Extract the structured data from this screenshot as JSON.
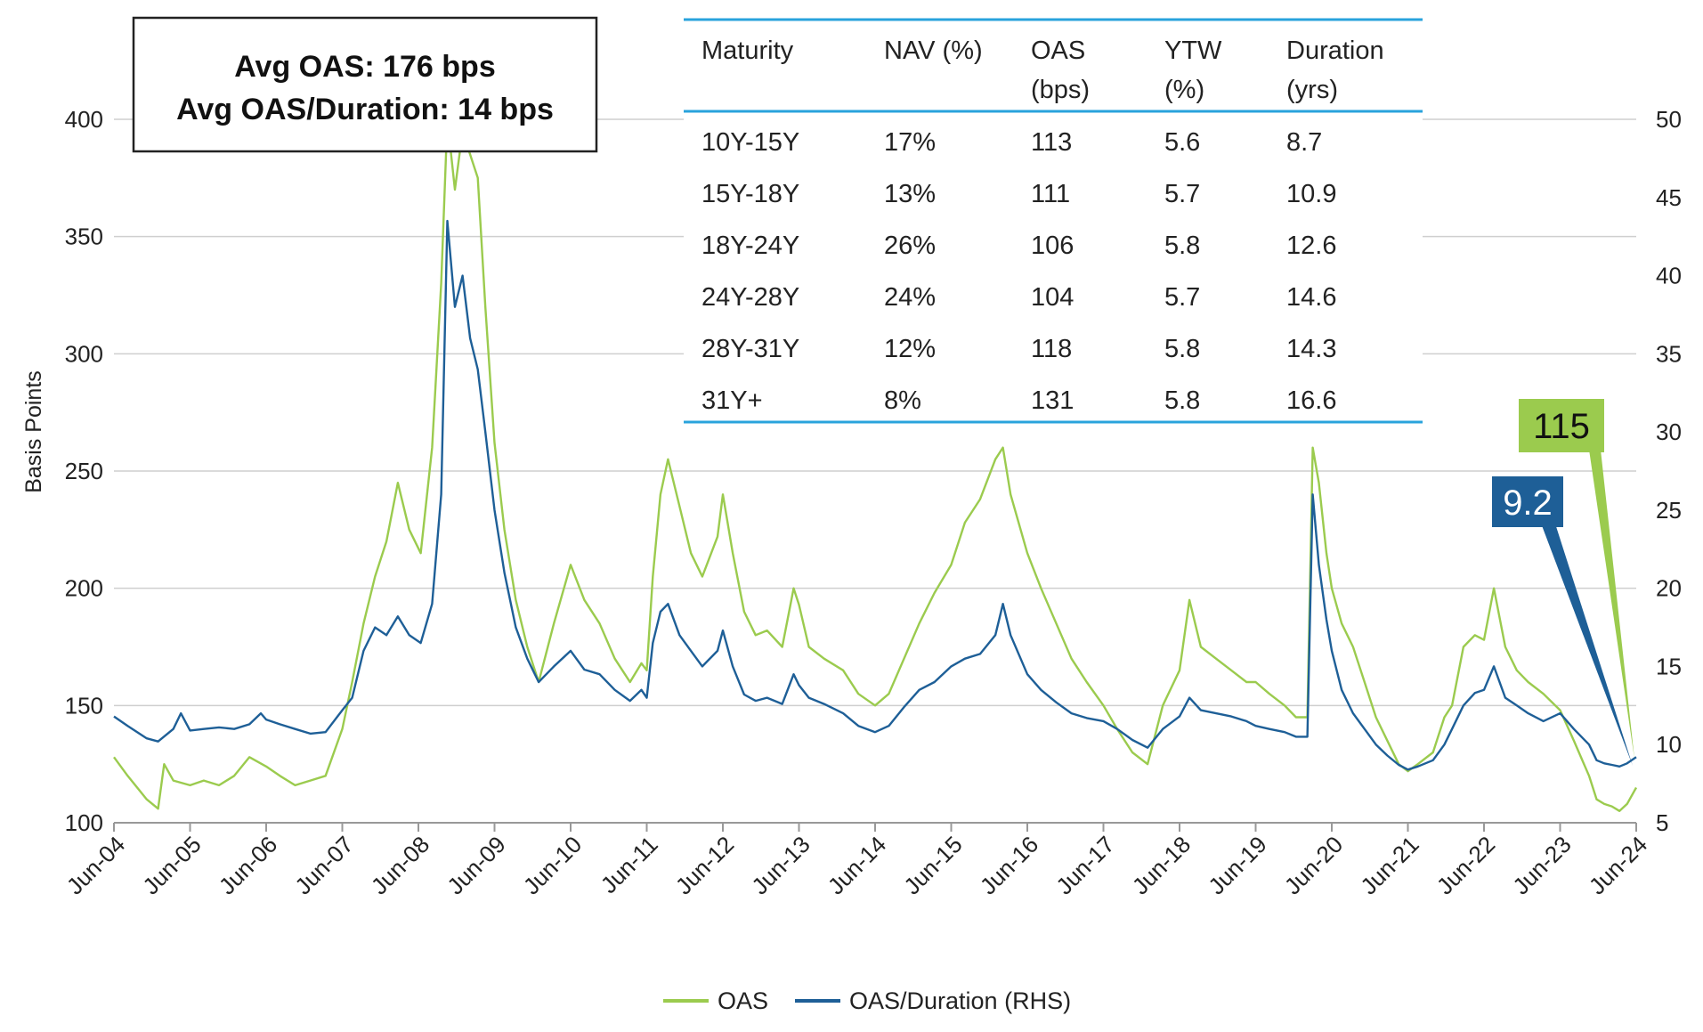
{
  "summary_box": {
    "line1": "Avg OAS: 176 bps",
    "line2": "Avg OAS/Duration: 14 bps"
  },
  "table": {
    "headers": [
      [
        "Maturity",
        ""
      ],
      [
        "NAV (%)",
        ""
      ],
      [
        "OAS",
        "(bps)"
      ],
      [
        "YTW",
        "(%)"
      ],
      [
        "Duration",
        "(yrs)"
      ]
    ],
    "rows": [
      [
        "10Y-15Y",
        "17%",
        "113",
        "5.6",
        "8.7"
      ],
      [
        "15Y-18Y",
        "13%",
        "111",
        "5.7",
        "10.9"
      ],
      [
        "18Y-24Y",
        "26%",
        "106",
        "5.8",
        "12.6"
      ],
      [
        "24Y-28Y",
        "24%",
        "104",
        "5.7",
        "14.6"
      ],
      [
        "28Y-31Y",
        "12%",
        "118",
        "5.8",
        "14.3"
      ],
      [
        "31Y+",
        "8%",
        "131",
        "5.8",
        "16.6"
      ]
    ],
    "rule_color": "#29a3dc"
  },
  "callouts": {
    "oas": {
      "label": "115",
      "bg": "#9bcb4e",
      "text_color": "#111111"
    },
    "oas_duration": {
      "label": "9.2",
      "bg": "#1e5f97",
      "text_color": "#ffffff"
    }
  },
  "chart_data": {
    "type": "line",
    "xlabel": "",
    "ylabel": "Basis Points",
    "y2label": "",
    "ylim": [
      100,
      400
    ],
    "y2lim": [
      5,
      50
    ],
    "yticks": [
      100,
      150,
      200,
      250,
      300,
      350,
      400
    ],
    "y2ticks": [
      5,
      10,
      15,
      20,
      25,
      30,
      35,
      40,
      45,
      50
    ],
    "xlim": [
      2004.42,
      2024.42
    ],
    "xticks": [
      {
        "x": 2004.42,
        "label": "Jun-04"
      },
      {
        "x": 2005.42,
        "label": "Jun-05"
      },
      {
        "x": 2006.42,
        "label": "Jun-06"
      },
      {
        "x": 2007.42,
        "label": "Jun-07"
      },
      {
        "x": 2008.42,
        "label": "Jun-08"
      },
      {
        "x": 2009.42,
        "label": "Jun-09"
      },
      {
        "x": 2010.42,
        "label": "Jun-10"
      },
      {
        "x": 2011.42,
        "label": "Jun-11"
      },
      {
        "x": 2012.42,
        "label": "Jun-12"
      },
      {
        "x": 2013.42,
        "label": "Jun-13"
      },
      {
        "x": 2014.42,
        "label": "Jun-14"
      },
      {
        "x": 2015.42,
        "label": "Jun-15"
      },
      {
        "x": 2016.42,
        "label": "Jun-16"
      },
      {
        "x": 2017.42,
        "label": "Jun-17"
      },
      {
        "x": 2018.42,
        "label": "Jun-18"
      },
      {
        "x": 2019.42,
        "label": "Jun-19"
      },
      {
        "x": 2020.42,
        "label": "Jun-20"
      },
      {
        "x": 2021.42,
        "label": "Jun-21"
      },
      {
        "x": 2022.42,
        "label": "Jun-22"
      },
      {
        "x": 2023.42,
        "label": "Jun-23"
      },
      {
        "x": 2024.42,
        "label": "Jun-24"
      }
    ],
    "grid": "horizontal",
    "legend_position": "bottom-center",
    "series": [
      {
        "name": "OAS",
        "axis": "left",
        "color": "#9bcb4e",
        "points": [
          [
            2004.42,
            128
          ],
          [
            2004.6,
            120
          ],
          [
            2004.85,
            110
          ],
          [
            2005.0,
            106
          ],
          [
            2005.08,
            125
          ],
          [
            2005.2,
            118
          ],
          [
            2005.42,
            116
          ],
          [
            2005.6,
            118
          ],
          [
            2005.8,
            116
          ],
          [
            2006.0,
            120
          ],
          [
            2006.2,
            128
          ],
          [
            2006.42,
            124
          ],
          [
            2006.6,
            120
          ],
          [
            2006.8,
            116
          ],
          [
            2007.0,
            118
          ],
          [
            2007.2,
            120
          ],
          [
            2007.42,
            140
          ],
          [
            2007.55,
            160
          ],
          [
            2007.7,
            185
          ],
          [
            2007.85,
            205
          ],
          [
            2008.0,
            220
          ],
          [
            2008.15,
            245
          ],
          [
            2008.3,
            225
          ],
          [
            2008.45,
            215
          ],
          [
            2008.6,
            260
          ],
          [
            2008.72,
            330
          ],
          [
            2008.8,
            400
          ],
          [
            2008.9,
            370
          ],
          [
            2009.0,
            395
          ],
          [
            2009.1,
            385
          ],
          [
            2009.2,
            375
          ],
          [
            2009.3,
            320
          ],
          [
            2009.42,
            262
          ],
          [
            2009.55,
            225
          ],
          [
            2009.7,
            195
          ],
          [
            2009.85,
            175
          ],
          [
            2010.0,
            160
          ],
          [
            2010.2,
            185
          ],
          [
            2010.42,
            210
          ],
          [
            2010.6,
            195
          ],
          [
            2010.8,
            185
          ],
          [
            2011.0,
            170
          ],
          [
            2011.2,
            160
          ],
          [
            2011.35,
            168
          ],
          [
            2011.42,
            165
          ],
          [
            2011.5,
            205
          ],
          [
            2011.6,
            240
          ],
          [
            2011.7,
            255
          ],
          [
            2011.85,
            235
          ],
          [
            2012.0,
            215
          ],
          [
            2012.15,
            205
          ],
          [
            2012.35,
            222
          ],
          [
            2012.42,
            240
          ],
          [
            2012.55,
            215
          ],
          [
            2012.7,
            190
          ],
          [
            2012.85,
            180
          ],
          [
            2013.0,
            182
          ],
          [
            2013.2,
            175
          ],
          [
            2013.35,
            200
          ],
          [
            2013.42,
            193
          ],
          [
            2013.55,
            175
          ],
          [
            2013.75,
            170
          ],
          [
            2014.0,
            165
          ],
          [
            2014.2,
            155
          ],
          [
            2014.42,
            150
          ],
          [
            2014.6,
            155
          ],
          [
            2014.8,
            170
          ],
          [
            2015.0,
            185
          ],
          [
            2015.2,
            198
          ],
          [
            2015.42,
            210
          ],
          [
            2015.6,
            228
          ],
          [
            2015.8,
            238
          ],
          [
            2016.0,
            255
          ],
          [
            2016.1,
            260
          ],
          [
            2016.2,
            240
          ],
          [
            2016.42,
            215
          ],
          [
            2016.6,
            200
          ],
          [
            2016.8,
            185
          ],
          [
            2017.0,
            170
          ],
          [
            2017.2,
            160
          ],
          [
            2017.42,
            150
          ],
          [
            2017.6,
            140
          ],
          [
            2017.8,
            130
          ],
          [
            2018.0,
            125
          ],
          [
            2018.2,
            150
          ],
          [
            2018.42,
            165
          ],
          [
            2018.55,
            195
          ],
          [
            2018.7,
            175
          ],
          [
            2018.9,
            170
          ],
          [
            2019.1,
            165
          ],
          [
            2019.3,
            160
          ],
          [
            2019.42,
            160
          ],
          [
            2019.6,
            155
          ],
          [
            2019.8,
            150
          ],
          [
            2019.95,
            145
          ],
          [
            2020.1,
            145
          ],
          [
            2020.17,
            260
          ],
          [
            2020.25,
            245
          ],
          [
            2020.35,
            215
          ],
          [
            2020.42,
            200
          ],
          [
            2020.55,
            185
          ],
          [
            2020.7,
            175
          ],
          [
            2020.85,
            160
          ],
          [
            2021.0,
            145
          ],
          [
            2021.15,
            135
          ],
          [
            2021.3,
            125
          ],
          [
            2021.42,
            122
          ],
          [
            2021.55,
            125
          ],
          [
            2021.75,
            130
          ],
          [
            2021.9,
            145
          ],
          [
            2022.0,
            150
          ],
          [
            2022.15,
            175
          ],
          [
            2022.3,
            180
          ],
          [
            2022.42,
            178
          ],
          [
            2022.55,
            200
          ],
          [
            2022.7,
            175
          ],
          [
            2022.85,
            165
          ],
          [
            2023.0,
            160
          ],
          [
            2023.2,
            155
          ],
          [
            2023.42,
            148
          ],
          [
            2023.6,
            135
          ],
          [
            2023.8,
            120
          ],
          [
            2023.9,
            110
          ],
          [
            2024.0,
            108
          ],
          [
            2024.1,
            107
          ],
          [
            2024.2,
            105
          ],
          [
            2024.3,
            108
          ],
          [
            2024.42,
            115
          ]
        ]
      },
      {
        "name": "OAS/Duration (RHS)",
        "axis": "right",
        "color": "#1e5f97",
        "points": [
          [
            2004.42,
            11.8
          ],
          [
            2004.6,
            11.2
          ],
          [
            2004.85,
            10.4
          ],
          [
            2005.0,
            10.2
          ],
          [
            2005.2,
            11.0
          ],
          [
            2005.3,
            12.0
          ],
          [
            2005.42,
            10.9
          ],
          [
            2005.6,
            11.0
          ],
          [
            2005.8,
            11.1
          ],
          [
            2006.0,
            11.0
          ],
          [
            2006.2,
            11.3
          ],
          [
            2006.35,
            12.0
          ],
          [
            2006.42,
            11.6
          ],
          [
            2006.6,
            11.3
          ],
          [
            2006.8,
            11.0
          ],
          [
            2007.0,
            10.7
          ],
          [
            2007.2,
            10.8
          ],
          [
            2007.42,
            12.2
          ],
          [
            2007.55,
            13.0
          ],
          [
            2007.7,
            16.0
          ],
          [
            2007.85,
            17.5
          ],
          [
            2008.0,
            17.0
          ],
          [
            2008.15,
            18.2
          ],
          [
            2008.3,
            17.0
          ],
          [
            2008.45,
            16.5
          ],
          [
            2008.6,
            19.0
          ],
          [
            2008.72,
            26.0
          ],
          [
            2008.8,
            43.5
          ],
          [
            2008.9,
            38.0
          ],
          [
            2009.0,
            40.0
          ],
          [
            2009.1,
            36.0
          ],
          [
            2009.2,
            34.0
          ],
          [
            2009.3,
            30.0
          ],
          [
            2009.42,
            25.0
          ],
          [
            2009.55,
            21.0
          ],
          [
            2009.7,
            17.5
          ],
          [
            2009.85,
            15.5
          ],
          [
            2010.0,
            14.0
          ],
          [
            2010.2,
            15.0
          ],
          [
            2010.42,
            16.0
          ],
          [
            2010.6,
            14.8
          ],
          [
            2010.8,
            14.5
          ],
          [
            2011.0,
            13.5
          ],
          [
            2011.2,
            12.8
          ],
          [
            2011.35,
            13.5
          ],
          [
            2011.42,
            13.0
          ],
          [
            2011.5,
            16.5
          ],
          [
            2011.6,
            18.5
          ],
          [
            2011.7,
            19.0
          ],
          [
            2011.85,
            17.0
          ],
          [
            2012.0,
            16.0
          ],
          [
            2012.15,
            15.0
          ],
          [
            2012.35,
            16.0
          ],
          [
            2012.42,
            17.3
          ],
          [
            2012.55,
            15.0
          ],
          [
            2012.7,
            13.2
          ],
          [
            2012.85,
            12.8
          ],
          [
            2013.0,
            13.0
          ],
          [
            2013.2,
            12.6
          ],
          [
            2013.35,
            14.5
          ],
          [
            2013.42,
            13.8
          ],
          [
            2013.55,
            13.0
          ],
          [
            2013.75,
            12.6
          ],
          [
            2014.0,
            12.0
          ],
          [
            2014.2,
            11.2
          ],
          [
            2014.42,
            10.8
          ],
          [
            2014.6,
            11.2
          ],
          [
            2014.8,
            12.4
          ],
          [
            2015.0,
            13.5
          ],
          [
            2015.2,
            14.0
          ],
          [
            2015.42,
            15.0
          ],
          [
            2015.6,
            15.5
          ],
          [
            2015.8,
            15.8
          ],
          [
            2016.0,
            17.0
          ],
          [
            2016.1,
            19.0
          ],
          [
            2016.2,
            17.0
          ],
          [
            2016.42,
            14.5
          ],
          [
            2016.6,
            13.5
          ],
          [
            2016.8,
            12.7
          ],
          [
            2017.0,
            12.0
          ],
          [
            2017.2,
            11.7
          ],
          [
            2017.42,
            11.5
          ],
          [
            2017.6,
            11.0
          ],
          [
            2017.8,
            10.3
          ],
          [
            2018.0,
            9.8
          ],
          [
            2018.2,
            11.0
          ],
          [
            2018.42,
            11.8
          ],
          [
            2018.55,
            13.0
          ],
          [
            2018.7,
            12.2
          ],
          [
            2018.9,
            12.0
          ],
          [
            2019.1,
            11.8
          ],
          [
            2019.3,
            11.5
          ],
          [
            2019.42,
            11.2
          ],
          [
            2019.6,
            11.0
          ],
          [
            2019.8,
            10.8
          ],
          [
            2019.95,
            10.5
          ],
          [
            2020.1,
            10.5
          ],
          [
            2020.17,
            26.0
          ],
          [
            2020.25,
            21.5
          ],
          [
            2020.35,
            18.0
          ],
          [
            2020.42,
            16.0
          ],
          [
            2020.55,
            13.5
          ],
          [
            2020.7,
            12.0
          ],
          [
            2020.85,
            11.0
          ],
          [
            2021.0,
            10.0
          ],
          [
            2021.15,
            9.3
          ],
          [
            2021.3,
            8.7
          ],
          [
            2021.42,
            8.4
          ],
          [
            2021.55,
            8.6
          ],
          [
            2021.75,
            9.0
          ],
          [
            2021.9,
            10.0
          ],
          [
            2022.0,
            11.0
          ],
          [
            2022.15,
            12.5
          ],
          [
            2022.3,
            13.3
          ],
          [
            2022.42,
            13.5
          ],
          [
            2022.55,
            15.0
          ],
          [
            2022.7,
            13.0
          ],
          [
            2022.85,
            12.5
          ],
          [
            2023.0,
            12.0
          ],
          [
            2023.2,
            11.5
          ],
          [
            2023.42,
            12.0
          ],
          [
            2023.6,
            11.0
          ],
          [
            2023.8,
            10.0
          ],
          [
            2023.9,
            9.0
          ],
          [
            2024.0,
            8.8
          ],
          [
            2024.1,
            8.7
          ],
          [
            2024.2,
            8.6
          ],
          [
            2024.3,
            8.8
          ],
          [
            2024.42,
            9.2
          ]
        ]
      }
    ]
  }
}
